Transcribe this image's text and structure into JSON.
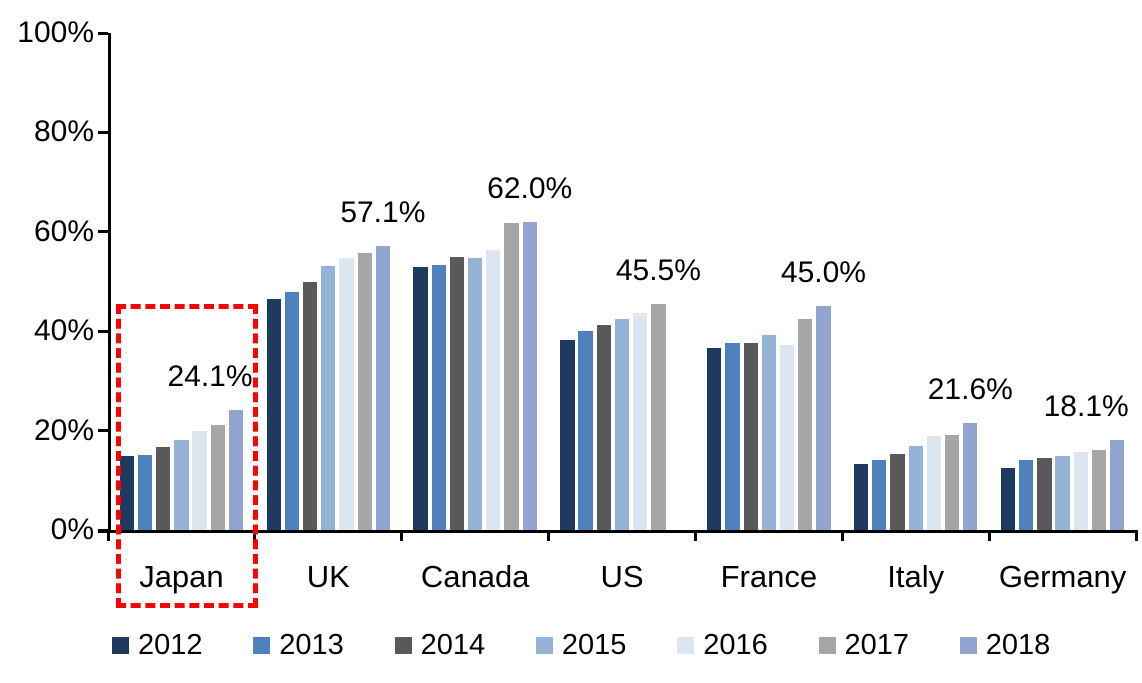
{
  "chart_data": {
    "type": "bar",
    "title": "",
    "xlabel": "",
    "ylabel": "",
    "categories": [
      "Japan",
      "UK",
      "Canada",
      "US",
      "France",
      "Italy",
      "Germany"
    ],
    "series": [
      {
        "name": "2012",
        "color": "#1F3A5F",
        "values": [
          14.9,
          46.4,
          53.0,
          38.2,
          36.6,
          13.3,
          12.5
        ]
      },
      {
        "name": "2013",
        "color": "#4F81BD",
        "values": [
          15.0,
          47.9,
          53.4,
          40.1,
          37.7,
          14.1,
          14.0
        ]
      },
      {
        "name": "2014",
        "color": "#595959",
        "values": [
          16.8,
          50.0,
          54.9,
          41.2,
          37.6,
          15.3,
          14.4
        ]
      },
      {
        "name": "2015",
        "color": "#95B3D7",
        "values": [
          18.1,
          53.2,
          54.8,
          42.4,
          39.3,
          16.9,
          14.9
        ]
      },
      {
        "name": "2016",
        "color": "#DCE6F1",
        "values": [
          19.9,
          54.8,
          56.3,
          43.6,
          37.3,
          18.9,
          15.6
        ]
      },
      {
        "name": "2017",
        "color": "#A6A6A6",
        "values": [
          21.2,
          55.8,
          61.7,
          45.5,
          42.4,
          19.2,
          16.0
        ]
      },
      {
        "name": "2018",
        "color": "#92A5D1",
        "values": [
          24.1,
          57.1,
          62.0,
          null,
          45.0,
          21.6,
          18.1
        ]
      }
    ],
    "data_labels": [
      {
        "category": "Japan",
        "text": "24.1%",
        "dx": -26
      },
      {
        "category": "UK",
        "text": "57.1%",
        "dx": 0
      },
      {
        "category": "Canada",
        "text": "62.0%",
        "dx": 0
      },
      {
        "category": "US",
        "text": "45.5%",
        "dx": 0
      },
      {
        "category": "France",
        "text": "45.0%",
        "dx": 0
      },
      {
        "category": "Italy",
        "text": "21.6%",
        "dx": 0
      },
      {
        "category": "Germany",
        "text": "18.1%",
        "dx": -31
      }
    ],
    "y_ticks": [
      {
        "label": "100%",
        "value": 100
      },
      {
        "label": "80%",
        "value": 80
      },
      {
        "label": "60%",
        "value": 60
      },
      {
        "label": "40%",
        "value": 40
      },
      {
        "label": "20%",
        "value": 20
      },
      {
        "label": "0%",
        "value": 0
      }
    ],
    "ylim": [
      0,
      100
    ],
    "grid": false,
    "legend": {
      "position": "bottom",
      "items": [
        "2012",
        "2013",
        "2014",
        "2015",
        "2016",
        "2017",
        "2018"
      ]
    },
    "annotation": {
      "type": "dashed-rectangle",
      "color": "#FF0000",
      "target": "Japan"
    }
  },
  "colors": {
    "axis": "#000000",
    "text": "#000000",
    "background": "#FFFFFF",
    "highlight": "#FF0000"
  }
}
